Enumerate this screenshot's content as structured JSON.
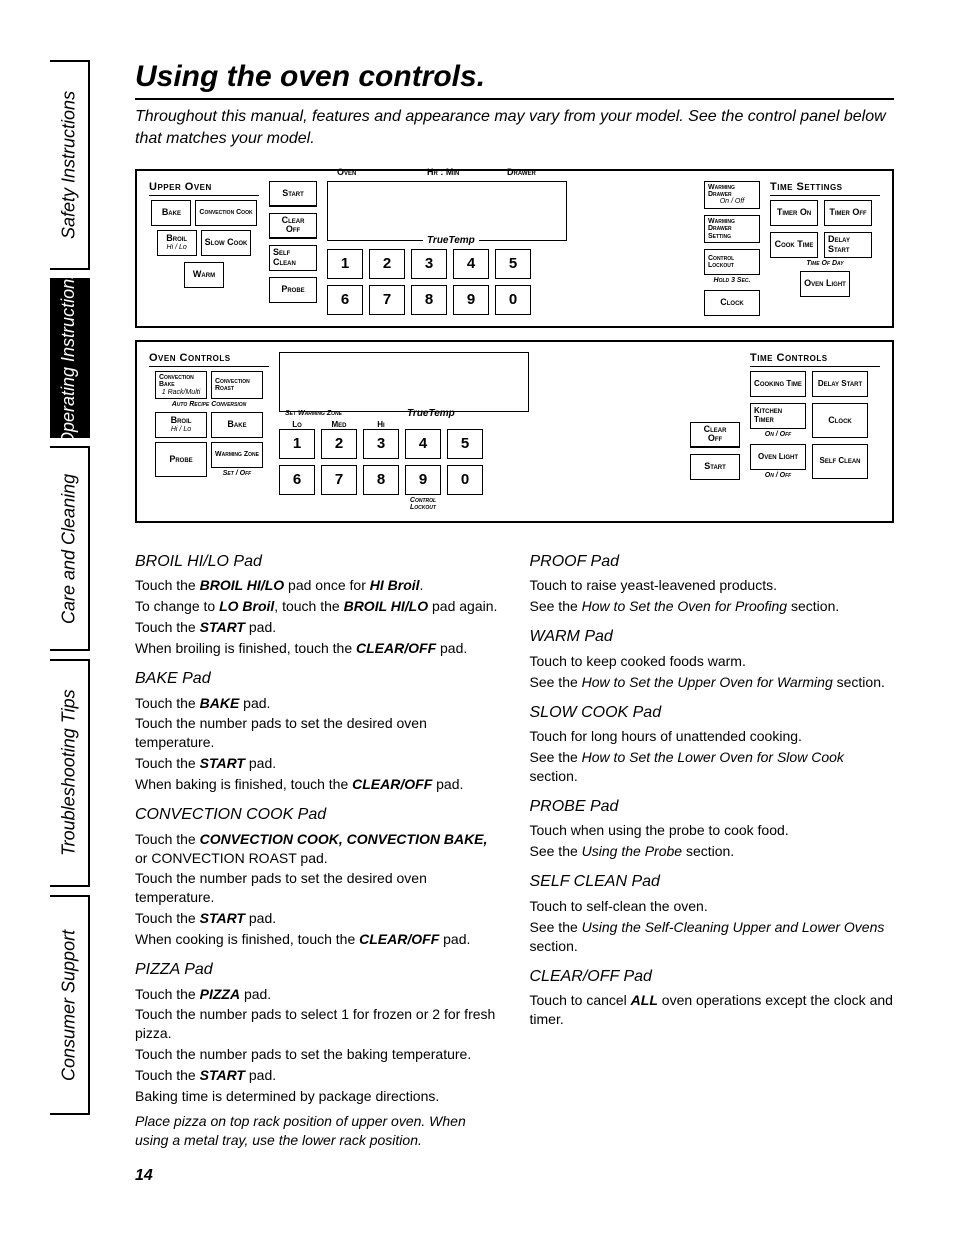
{
  "page_number": "14",
  "title": "Using the oven controls.",
  "intro": "Throughout this manual, features and appearance may vary from your model. See the control panel below that matches your model.",
  "tabs": [
    "Safety Instructions",
    "Operating Instructions",
    "Care and Cleaning",
    "Troubleshooting Tips",
    "Consumer Support"
  ],
  "panel1": {
    "upper_oven": "Upper Oven",
    "buttons": {
      "bake": "Bake",
      "conv_cook": "Convection Cook",
      "broil": "Broil",
      "broil_sub": "Hi / Lo",
      "slow_cook": "Slow Cook",
      "warm": "Warm",
      "start": "Start",
      "clear_off_a": "Clear",
      "clear_off_b": "Off",
      "self_clean": "Self Clean",
      "probe": "Probe"
    },
    "display": {
      "oven": "Oven",
      "hrmin": "Hr : Min",
      "drawer": "Drawer",
      "truetemp": "TrueTemp"
    },
    "right": {
      "wd_onoff": "Warming Drawer",
      "wd_sub": "On / Off",
      "wd_set": "Warming Drawer Setting",
      "lockout": "Control Lockout",
      "lockout_sub": "Hold 3 Sec.",
      "clock": "Clock"
    },
    "time_settings": "Time Settings",
    "time_btns": {
      "timer_on": "Timer On",
      "timer_off": "Timer Off",
      "cook_time": "Cook Time",
      "delay_start": "Delay Start",
      "oven_light": "Oven Light",
      "tod": "Time Of Day"
    }
  },
  "panel2": {
    "oven_controls": "Oven Controls",
    "buttons": {
      "conv_bake": "Convection Bake",
      "conv_bake_sub": "1 Rack/Multi",
      "conv_roast": "Convection Roast",
      "arc": "Auto Recipe Conversion",
      "broil": "Broil",
      "broil_sub": "Hi / Lo",
      "bake": "Bake",
      "probe": "Probe",
      "warming_zone": "Warming Zone",
      "wz_sub": "Set / Off"
    },
    "swz": "Set Warming Zone",
    "truetemp": "TrueTemp",
    "zone_labels": {
      "lo": "Lo",
      "med": "Med",
      "hi": "Hi"
    },
    "ctrl_lockout_sub": "Control Lockout",
    "clear_off_a": "Clear",
    "clear_off_b": "Off",
    "start": "Start",
    "time_controls": "Time Controls",
    "time_btns": {
      "cooking_time": "Cooking Time",
      "delay_start": "Delay Start",
      "kitchen_timer": "Kitchen Timer",
      "kt_sub": "On / Off",
      "clock": "Clock",
      "oven_light": "Oven Light",
      "ol_sub": "On / Off",
      "self_clean": "Self Clean"
    }
  },
  "nums": [
    "1",
    "2",
    "3",
    "4",
    "5",
    "6",
    "7",
    "8",
    "9",
    "0"
  ],
  "left_col": [
    {
      "head": "BROIL HI/LO Pad",
      "body": [
        "Touch the <b><i>BROIL HI/LO</i></b> pad once for <b><i>HI Broil</i></b>.",
        "To change to <b><i>LO Broil</i></b>, touch the <b><i>BROIL HI/LO</i></b> pad again.",
        "Touch the <b><i>START</i></b> pad.",
        "When broiling is finished, touch the <b><i>CLEAR/OFF</i></b> pad."
      ]
    },
    {
      "head": "BAKE Pad",
      "body": [
        "Touch the <b><i>BAKE</i></b> pad.",
        "Touch the number pads to set the desired oven temperature.",
        "Touch the <b><i>START</i></b> pad.",
        "When baking is finished, touch the <b><i>CLEAR/OFF</i></b> pad."
      ]
    },
    {
      "head": "CONVECTION COOK Pad",
      "body": [
        "Touch the <b><i>CONVECTION COOK, CONVECTION BAKE,</i></b> or CONVECTION ROAST pad.",
        "Touch the number pads to set the desired oven temperature.",
        "Touch the <b><i>START</i></b> pad.",
        "When cooking is finished, touch the <b><i>CLEAR/OFF</i></b> pad."
      ]
    },
    {
      "head": "PIZZA Pad",
      "body": [
        "Touch the <b><i>PIZZA</i></b> pad.",
        "Touch the number pads to select 1 for frozen or 2 for fresh pizza.",
        "Touch the number pads to set the baking temperature.",
        "Touch the <b><i>START</i></b> pad.",
        "Baking time is determined by package directions."
      ],
      "note": "Place pizza on top rack position of upper oven. When using a metal tray, use the lower rack position."
    }
  ],
  "right_col": [
    {
      "head": "PROOF Pad",
      "body": [
        "Touch to raise yeast-leavened products.",
        "See the <i>How to Set the Oven for Proofing</i> section."
      ]
    },
    {
      "head": "WARM Pad",
      "body": [
        "Touch to keep cooked foods warm.",
        "See the <i>How to Set the Upper Oven for Warming</i> section."
      ]
    },
    {
      "head": "SLOW COOK Pad",
      "body": [
        "Touch for long hours of unattended cooking.",
        "See the <i>How to Set the Lower Oven for Slow Cook</i> section."
      ]
    },
    {
      "head": "PROBE Pad",
      "body": [
        "Touch when using the probe to cook food.",
        "See the <i>Using the Probe</i> section."
      ]
    },
    {
      "head": "SELF CLEAN Pad",
      "body": [
        "Touch to self-clean the oven.",
        "See the <i>Using the Self-Cleaning Upper and Lower Ovens</i> section."
      ]
    },
    {
      "head": "CLEAR/OFF Pad",
      "body": [
        "Touch to cancel <b><i>ALL</i></b> oven operations except the clock and timer."
      ]
    }
  ]
}
